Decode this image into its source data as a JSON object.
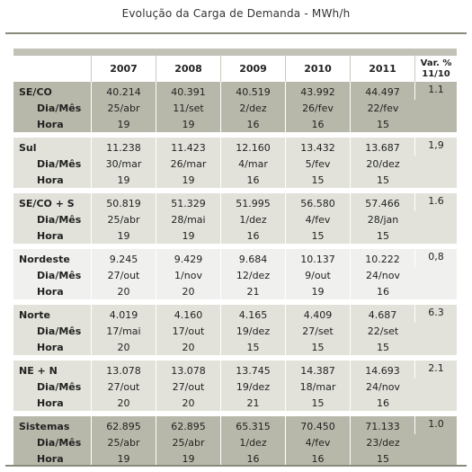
{
  "title": "Evolução da Carga de Demanda - MWh/h",
  "header": {
    "years": [
      "2007",
      "2008",
      "2009",
      "2010",
      "2011"
    ],
    "var_line1": "Var. %",
    "var_line2": "11/10"
  },
  "sub_labels": {
    "date": "Dia/Mês",
    "hour": "Hora"
  },
  "regions": [
    {
      "name": "SE/CO",
      "values": [
        "40.214",
        "40.391",
        "40.519",
        "43.992",
        "44.497"
      ],
      "dates": [
        "25/abr",
        "11/set",
        "2/dez",
        "26/fev",
        "22/fev"
      ],
      "hours": [
        "19",
        "19",
        "16",
        "16",
        "15"
      ],
      "var": "1.1"
    },
    {
      "name": "Sul",
      "values": [
        "11.238",
        "11.423",
        "12.160",
        "13.432",
        "13.687"
      ],
      "dates": [
        "30/mar",
        "26/mar",
        "4/mar",
        "5/fev",
        "20/dez"
      ],
      "hours": [
        "19",
        "19",
        "16",
        "15",
        "15"
      ],
      "var": "1,9"
    },
    {
      "name": "SE/CO + S",
      "values": [
        "50.819",
        "51.329",
        "51.995",
        "56.580",
        "57.466"
      ],
      "dates": [
        "25/abr",
        "28/mai",
        "1/dez",
        "4/fev",
        "28/jan"
      ],
      "hours": [
        "19",
        "19",
        "16",
        "15",
        "15"
      ],
      "var": "1.6"
    },
    {
      "name": "Nordeste",
      "values": [
        "9.245",
        "9.429",
        "9.684",
        "10.137",
        "10.222"
      ],
      "dates": [
        "27/out",
        "1/nov",
        "12/dez",
        "9/out",
        "24/nov"
      ],
      "hours": [
        "20",
        "20",
        "21",
        "19",
        "16"
      ],
      "var": "0,8"
    },
    {
      "name": "Norte",
      "values": [
        "4.019",
        "4.160",
        "4.165",
        "4.409",
        "4.687"
      ],
      "dates": [
        "17/mai",
        "17/out",
        "19/dez",
        "27/set",
        "22/set"
      ],
      "hours": [
        "20",
        "20",
        "15",
        "15",
        "15"
      ],
      "var": "6.3"
    },
    {
      "name": "NE + N",
      "values": [
        "13.078",
        "13.078",
        "13.745",
        "14.387",
        "14.693"
      ],
      "dates": [
        "27/out",
        "27/out",
        "19/dez",
        "18/mar",
        "24/nov"
      ],
      "hours": [
        "20",
        "20",
        "21",
        "15",
        "16"
      ],
      "var": "2.1"
    },
    {
      "name": "Sistemas",
      "values": [
        "62.895",
        "62.895",
        "65.315",
        "70.450",
        "71.133"
      ],
      "dates": [
        "25/abr",
        "25/abr",
        "1/dez",
        "4/fev",
        "23/dez"
      ],
      "hours": [
        "19",
        "19",
        "16",
        "16",
        "15"
      ],
      "var": "1.0"
    }
  ]
}
